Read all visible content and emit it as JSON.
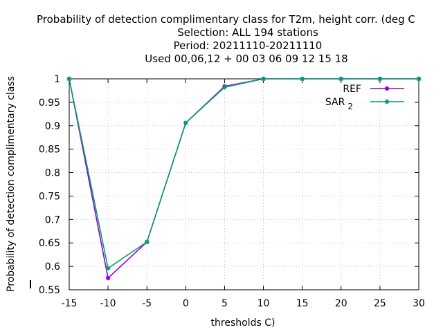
{
  "chart_data": {
    "type": "line",
    "title_lines": [
      "Probability of detection complimentary class  for T2m, height corr. (deg C",
      "Selection: ALL    194 stations",
      "Period: 20211110-20211110",
      "Used  00,06,12  + 00 03 06 09 12 15 18"
    ],
    "xlabel": "thresholds C)",
    "ylabel": "Probability of detection complimentary class",
    "x": [
      -15,
      -10,
      -5,
      0,
      5,
      10,
      15,
      20,
      25,
      30
    ],
    "xlim": [
      -15,
      30
    ],
    "ylim": [
      0.55,
      1
    ],
    "xticks": [
      -15,
      -10,
      -5,
      0,
      5,
      10,
      15,
      20,
      25,
      30
    ],
    "yticks": [
      0.55,
      0.6,
      0.65,
      0.7,
      0.75,
      0.8,
      0.85,
      0.9,
      0.95,
      1
    ],
    "ytick_labels": [
      "0.55",
      "0.6",
      "0.65",
      "0.7",
      "0.75",
      "0.8",
      "0.85",
      "0.9",
      "0.95",
      "1"
    ],
    "grid": true,
    "legend_position": "top-right",
    "series": [
      {
        "name": "REF",
        "color": "#9400d3",
        "values": [
          1.0,
          0.575,
          0.652,
          0.906,
          0.984,
          1.0,
          1.0,
          1.0,
          1.0,
          1.0
        ]
      },
      {
        "name": "SAR",
        "name_subscript": "2",
        "color": "#009e73",
        "values": [
          1.0,
          0.596,
          0.652,
          0.906,
          0.982,
          1.0,
          1.0,
          1.0,
          1.0,
          1.0
        ]
      }
    ]
  }
}
